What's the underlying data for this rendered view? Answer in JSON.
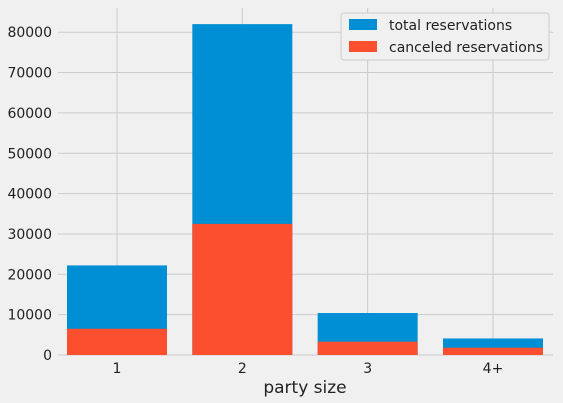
{
  "chart_data": {
    "type": "bar",
    "stacked": "overlay",
    "categories": [
      "1",
      "2",
      "3",
      "4+"
    ],
    "series": [
      {
        "name": "total reservations",
        "values": [
          22200,
          82000,
          10400,
          4100
        ],
        "color": "#008fd5"
      },
      {
        "name": "canceled reservations",
        "values": [
          6500,
          32500,
          3300,
          1800
        ],
        "color": "#fc4f30"
      }
    ],
    "title": "",
    "xlabel": "party size",
    "ylabel": "",
    "ylim": [
      0,
      86000
    ],
    "yticks": [
      0,
      10000,
      20000,
      30000,
      40000,
      50000,
      60000,
      70000,
      80000
    ],
    "grid": true,
    "legend_position": "top-right"
  },
  "colors": {
    "background": "#f0f0f0",
    "grid": "#cbcbcb"
  }
}
